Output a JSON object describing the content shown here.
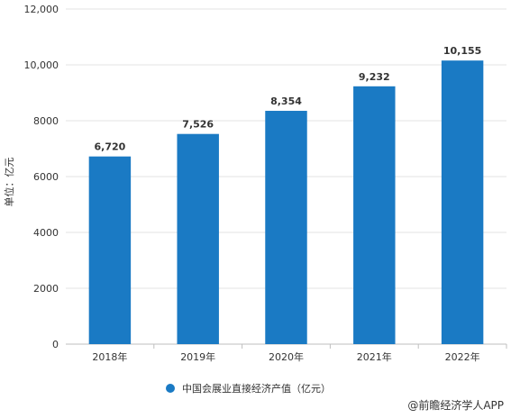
{
  "chart_data": {
    "type": "bar",
    "categories": [
      "2018年",
      "2019年",
      "2020年",
      "2021年",
      "2022年"
    ],
    "series": [
      {
        "name": "中国会展业直接经济产值（亿元）",
        "values": [
          6720,
          7526,
          8354,
          9232,
          10155
        ]
      }
    ],
    "data_labels": [
      "6,720",
      "7,526",
      "8,354",
      "9,232",
      "10,155"
    ],
    "yticks": [
      0,
      2000,
      4000,
      6000,
      8000,
      10000,
      12000
    ],
    "ytick_labels": [
      "0",
      "2000",
      "4000",
      "6000",
      "8000",
      "10,000",
      "12,000"
    ],
    "ylim": [
      0,
      12000
    ],
    "ylabel": "单位：亿元",
    "xlabel": "",
    "title": "",
    "grid": true,
    "legend_position": "bottom-center",
    "bar_color": "#1a7ac4"
  },
  "credit": "@前瞻经济学人APP"
}
